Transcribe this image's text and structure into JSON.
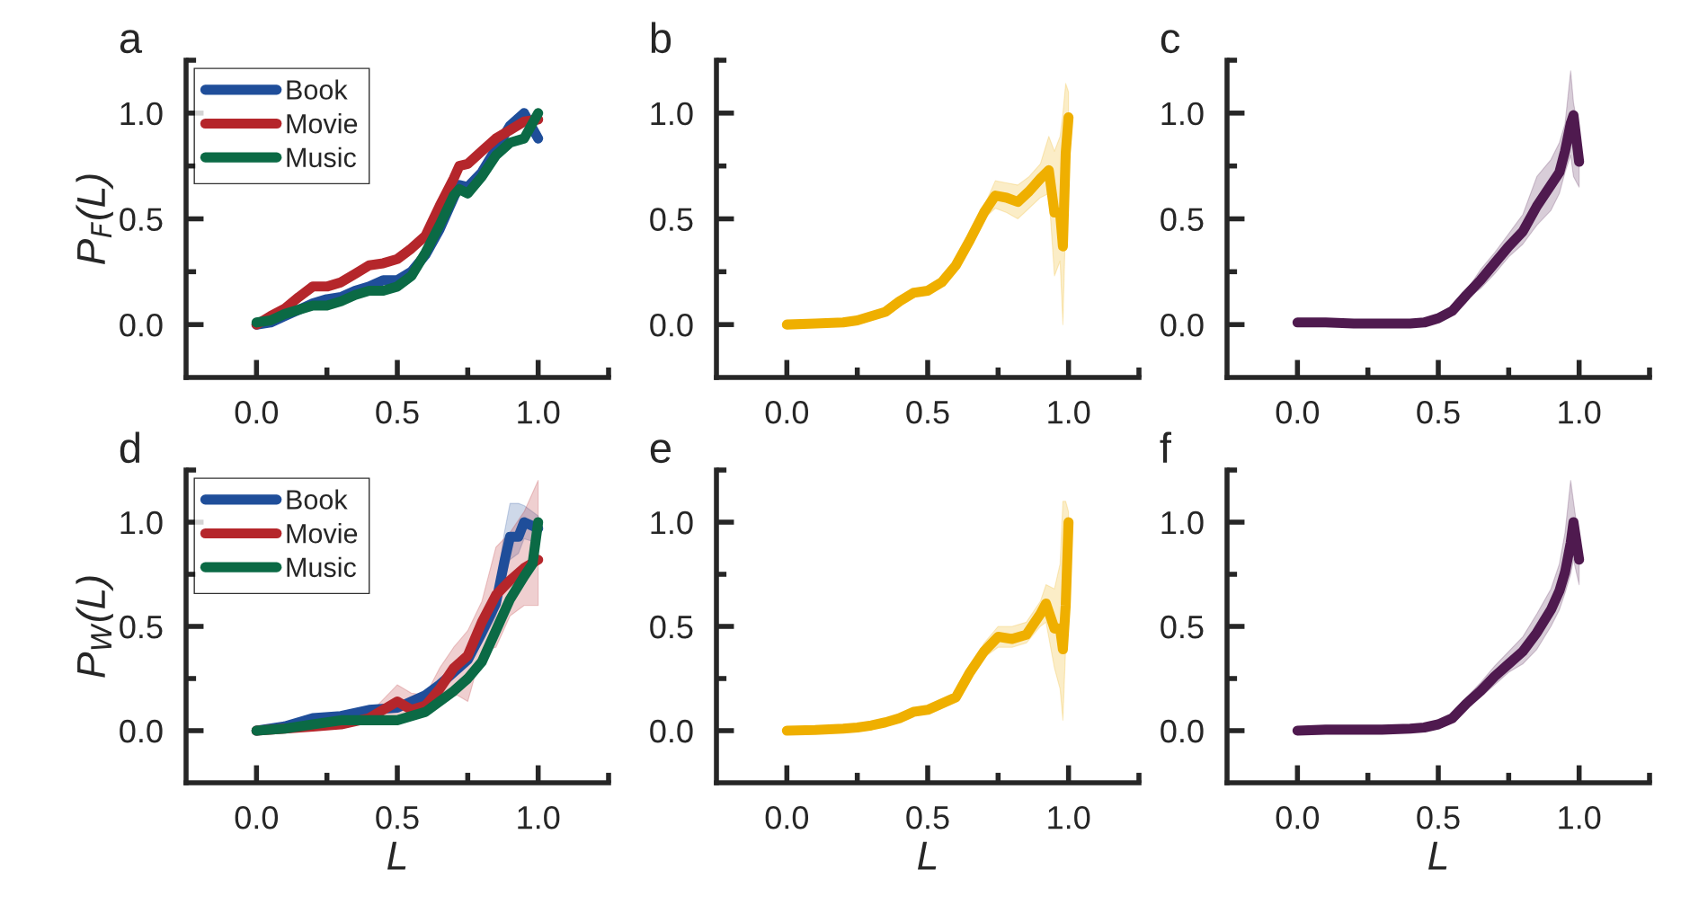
{
  "chart_data": [
    {
      "type": "line",
      "title": "a",
      "ylabel": "P$_{F}$(L)",
      "xlim": [
        -0.25,
        1.25
      ],
      "ylim": [
        -0.25,
        1.25
      ],
      "legend": "top left",
      "xticks": [
        {
          "value": 0,
          "label": "0.0"
        },
        {
          "value": 0.25,
          "label": null
        },
        {
          "value": 0.5,
          "label": "0.5"
        },
        {
          "value": 0.75,
          "label": null
        },
        {
          "value": 1.0,
          "label": "1.0"
        },
        {
          "value": 1.25,
          "label": null
        }
      ],
      "yticks": [
        {
          "value": 0,
          "label": "0.0"
        },
        {
          "value": 0.25,
          "label": null
        },
        {
          "value": 0.5,
          "label": "0.5"
        },
        {
          "value": 0.75,
          "label": null
        },
        {
          "value": 1.0,
          "label": "1.0"
        },
        {
          "value": 1.25,
          "label": null
        }
      ],
      "series": [
        {
          "name": "Book",
          "color": "#1f4e9a",
          "x": [
            0,
            0.05,
            0.1,
            0.15,
            0.2,
            0.25,
            0.3,
            0.35,
            0.4,
            0.45,
            0.5,
            0.55,
            0.6,
            0.65,
            0.7,
            0.72,
            0.75,
            0.8,
            0.85,
            0.9,
            0.95,
            1.0
          ],
          "values": [
            0,
            0.01,
            0.04,
            0.07,
            0.1,
            0.12,
            0.13,
            0.16,
            0.18,
            0.21,
            0.21,
            0.25,
            0.33,
            0.45,
            0.6,
            0.66,
            0.65,
            0.72,
            0.83,
            0.94,
            1.0,
            0.88
          ]
        },
        {
          "name": "Movie",
          "color": "#b5262b",
          "x": [
            0,
            0.05,
            0.1,
            0.15,
            0.2,
            0.25,
            0.3,
            0.35,
            0.4,
            0.45,
            0.5,
            0.55,
            0.6,
            0.65,
            0.7,
            0.72,
            0.75,
            0.8,
            0.85,
            0.9,
            0.95,
            1.0
          ],
          "values": [
            0,
            0.04,
            0.075,
            0.13,
            0.18,
            0.18,
            0.2,
            0.24,
            0.28,
            0.29,
            0.31,
            0.36,
            0.42,
            0.56,
            0.69,
            0.75,
            0.76,
            0.82,
            0.88,
            0.92,
            0.96,
            0.97
          ]
        },
        {
          "name": "Music",
          "color": "#0b6a45",
          "x": [
            0,
            0.05,
            0.1,
            0.15,
            0.2,
            0.25,
            0.3,
            0.35,
            0.4,
            0.45,
            0.5,
            0.55,
            0.6,
            0.65,
            0.7,
            0.72,
            0.75,
            0.8,
            0.85,
            0.9,
            0.95,
            1.0
          ],
          "values": [
            0.01,
            0.02,
            0.05,
            0.07,
            0.09,
            0.09,
            0.11,
            0.14,
            0.16,
            0.16,
            0.18,
            0.23,
            0.34,
            0.47,
            0.61,
            0.64,
            0.62,
            0.7,
            0.8,
            0.86,
            0.88,
            1.0
          ]
        }
      ]
    },
    {
      "type": "line",
      "title": "b",
      "xlim": [
        -0.25,
        1.25
      ],
      "ylim": [
        -0.25,
        1.25
      ],
      "xticks": [
        {
          "value": 0,
          "label": "0.0"
        },
        {
          "value": 0.25,
          "label": null
        },
        {
          "value": 0.5,
          "label": "0.5"
        },
        {
          "value": 0.75,
          "label": null
        },
        {
          "value": 1.0,
          "label": "1.0"
        },
        {
          "value": 1.25,
          "label": null
        }
      ],
      "yticks": [
        {
          "value": 0,
          "label": "0.0"
        },
        {
          "value": 0.25,
          "label": null
        },
        {
          "value": 0.5,
          "label": "0.5"
        },
        {
          "value": 0.75,
          "label": null
        },
        {
          "value": 1.0,
          "label": "1.0"
        },
        {
          "value": 1.25,
          "label": null
        }
      ],
      "series": [
        {
          "color": "#efaf00",
          "x": [
            0,
            0.1,
            0.2,
            0.25,
            0.3,
            0.35,
            0.4,
            0.45,
            0.5,
            0.55,
            0.6,
            0.65,
            0.7,
            0.74,
            0.78,
            0.82,
            0.86,
            0.9,
            0.93,
            0.95,
            0.97,
            0.98,
            0.99,
            1.0
          ],
          "values": [
            0,
            0.005,
            0.01,
            0.02,
            0.04,
            0.06,
            0.11,
            0.15,
            0.16,
            0.2,
            0.28,
            0.4,
            0.53,
            0.61,
            0.6,
            0.58,
            0.63,
            0.69,
            0.73,
            0.53,
            0.53,
            0.37,
            0.81,
            0.98
          ],
          "lower": [
            0,
            0.005,
            0.01,
            0.02,
            0.04,
            0.06,
            0.11,
            0.15,
            0.16,
            0.2,
            0.27,
            0.38,
            0.5,
            0.55,
            0.53,
            0.5,
            0.55,
            0.6,
            0.62,
            0.23,
            0.3,
            0.0,
            0.5,
            0.9
          ],
          "upper": [
            0,
            0.005,
            0.01,
            0.02,
            0.04,
            0.06,
            0.11,
            0.15,
            0.16,
            0.2,
            0.29,
            0.42,
            0.56,
            0.68,
            0.67,
            0.66,
            0.7,
            0.76,
            0.89,
            0.82,
            0.89,
            1.0,
            1.14,
            1.1
          ]
        }
      ]
    },
    {
      "type": "line",
      "title": "c",
      "xlim": [
        -0.25,
        1.25
      ],
      "ylim": [
        -0.25,
        1.25
      ],
      "xticks": [
        {
          "value": 0,
          "label": "0.0"
        },
        {
          "value": 0.25,
          "label": null
        },
        {
          "value": 0.5,
          "label": "0.5"
        },
        {
          "value": 0.75,
          "label": null
        },
        {
          "value": 1.0,
          "label": "1.0"
        },
        {
          "value": 1.25,
          "label": null
        }
      ],
      "yticks": [
        {
          "value": 0,
          "label": "0.0"
        },
        {
          "value": 0.25,
          "label": null
        },
        {
          "value": 0.5,
          "label": "0.5"
        },
        {
          "value": 0.75,
          "label": null
        },
        {
          "value": 1.0,
          "label": "1.0"
        },
        {
          "value": 1.25,
          "label": null
        }
      ],
      "series": [
        {
          "color": "#4f1a4f",
          "x": [
            0,
            0.1,
            0.2,
            0.3,
            0.4,
            0.45,
            0.5,
            0.55,
            0.6,
            0.65,
            0.7,
            0.75,
            0.8,
            0.85,
            0.9,
            0.93,
            0.95,
            0.97,
            0.98,
            1.0
          ],
          "values": [
            0.01,
            0.01,
            0.005,
            0.005,
            0.005,
            0.01,
            0.03,
            0.065,
            0.14,
            0.21,
            0.29,
            0.37,
            0.44,
            0.56,
            0.66,
            0.72,
            0.82,
            0.95,
            0.99,
            0.77
          ],
          "lower": [
            0.01,
            0.01,
            0.005,
            0.005,
            0.005,
            0.01,
            0.03,
            0.06,
            0.12,
            0.17,
            0.24,
            0.32,
            0.38,
            0.47,
            0.54,
            0.62,
            0.72,
            0.8,
            0.7,
            0.65
          ],
          "upper": [
            0.01,
            0.01,
            0.005,
            0.005,
            0.005,
            0.01,
            0.03,
            0.07,
            0.16,
            0.26,
            0.34,
            0.43,
            0.52,
            0.7,
            0.78,
            0.86,
            0.95,
            1.2,
            1.05,
            0.9
          ]
        }
      ]
    },
    {
      "type": "line",
      "title": "d",
      "ylabel": "P$_{W}$(L)",
      "xlabel": "L",
      "xlim": [
        -0.25,
        1.25
      ],
      "ylim": [
        -0.25,
        1.25
      ],
      "legend": "top left",
      "xticks": [
        {
          "value": 0,
          "label": "0.0"
        },
        {
          "value": 0.25,
          "label": null
        },
        {
          "value": 0.5,
          "label": "0.5"
        },
        {
          "value": 0.75,
          "label": null
        },
        {
          "value": 1.0,
          "label": "1.0"
        },
        {
          "value": 1.25,
          "label": null
        }
      ],
      "yticks": [
        {
          "value": 0,
          "label": "0.0"
        },
        {
          "value": 0.25,
          "label": null
        },
        {
          "value": 0.5,
          "label": "0.5"
        },
        {
          "value": 0.75,
          "label": null
        },
        {
          "value": 1.0,
          "label": "1.0"
        },
        {
          "value": 1.25,
          "label": null
        }
      ],
      "series": [
        {
          "name": "Book",
          "color": "#1f4e9a",
          "x": [
            0,
            0.1,
            0.2,
            0.3,
            0.4,
            0.5,
            0.6,
            0.65,
            0.7,
            0.75,
            0.8,
            0.85,
            0.88,
            0.9,
            0.93,
            0.95,
            1.0
          ],
          "values": [
            0,
            0.02,
            0.06,
            0.07,
            0.1,
            0.11,
            0.17,
            0.22,
            0.28,
            0.34,
            0.47,
            0.61,
            0.81,
            0.93,
            0.93,
            1.0,
            0.97
          ],
          "lower": [
            0,
            0.02,
            0.05,
            0.06,
            0.09,
            0.1,
            0.15,
            0.2,
            0.26,
            0.31,
            0.42,
            0.55,
            0.72,
            0.82,
            0.85,
            0.92,
            0.9
          ],
          "upper": [
            0,
            0.03,
            0.07,
            0.08,
            0.11,
            0.13,
            0.19,
            0.24,
            0.3,
            0.37,
            0.52,
            0.68,
            0.95,
            1.09,
            1.09,
            1.08,
            1.03
          ]
        },
        {
          "name": "Movie",
          "color": "#b5262b",
          "x": [
            0,
            0.1,
            0.2,
            0.3,
            0.4,
            0.5,
            0.55,
            0.6,
            0.65,
            0.7,
            0.75,
            0.8,
            0.85,
            0.9,
            0.95,
            1.0
          ],
          "values": [
            0,
            0.01,
            0.02,
            0.03,
            0.06,
            0.14,
            0.1,
            0.12,
            0.2,
            0.3,
            0.36,
            0.52,
            0.65,
            0.72,
            0.78,
            0.82
          ],
          "lower": [
            0,
            0,
            0.01,
            0.02,
            0.04,
            0.07,
            0.05,
            0.08,
            0.12,
            0.18,
            0.14,
            0.38,
            0.4,
            0.55,
            0.6,
            0.6
          ],
          "upper": [
            0,
            0.02,
            0.04,
            0.05,
            0.08,
            0.22,
            0.18,
            0.17,
            0.3,
            0.4,
            0.48,
            0.62,
            0.88,
            0.95,
            1.05,
            1.2
          ]
        },
        {
          "name": "Music",
          "color": "#0b6a45",
          "x": [
            0,
            0.1,
            0.2,
            0.3,
            0.4,
            0.5,
            0.6,
            0.7,
            0.75,
            0.8,
            0.85,
            0.9,
            0.95,
            0.98,
            1.0
          ],
          "values": [
            0,
            0.01,
            0.03,
            0.05,
            0.05,
            0.05,
            0.09,
            0.19,
            0.25,
            0.33,
            0.48,
            0.63,
            0.74,
            0.8,
            1.0
          ]
        }
      ]
    },
    {
      "type": "line",
      "title": "e",
      "xlabel": "L",
      "xlim": [
        -0.25,
        1.25
      ],
      "ylim": [
        -0.25,
        1.25
      ],
      "xticks": [
        {
          "value": 0,
          "label": "0.0"
        },
        {
          "value": 0.25,
          "label": null
        },
        {
          "value": 0.5,
          "label": "0.5"
        },
        {
          "value": 0.75,
          "label": null
        },
        {
          "value": 1.0,
          "label": "1.0"
        },
        {
          "value": 1.25,
          "label": null
        }
      ],
      "yticks": [
        {
          "value": 0,
          "label": "0.0"
        },
        {
          "value": 0.25,
          "label": null
        },
        {
          "value": 0.5,
          "label": "0.5"
        },
        {
          "value": 0.75,
          "label": null
        },
        {
          "value": 1.0,
          "label": "1.0"
        },
        {
          "value": 1.25,
          "label": null
        }
      ],
      "series": [
        {
          "color": "#efaf00",
          "x": [
            0,
            0.1,
            0.2,
            0.25,
            0.3,
            0.35,
            0.4,
            0.45,
            0.5,
            0.55,
            0.6,
            0.65,
            0.7,
            0.75,
            0.8,
            0.85,
            0.9,
            0.92,
            0.95,
            0.97,
            0.98,
            0.99,
            1.0
          ],
          "values": [
            0,
            0.003,
            0.01,
            0.015,
            0.025,
            0.04,
            0.06,
            0.09,
            0.1,
            0.13,
            0.16,
            0.28,
            0.38,
            0.45,
            0.44,
            0.46,
            0.56,
            0.61,
            0.49,
            0.49,
            0.39,
            0.6,
            1.0
          ],
          "lower": [
            0,
            0.003,
            0.01,
            0.015,
            0.025,
            0.04,
            0.06,
            0.09,
            0.1,
            0.13,
            0.15,
            0.26,
            0.35,
            0.4,
            0.4,
            0.42,
            0.5,
            0.52,
            0.3,
            0.2,
            0.05,
            0.4,
            0.85
          ],
          "upper": [
            0,
            0.003,
            0.01,
            0.015,
            0.025,
            0.04,
            0.06,
            0.09,
            0.1,
            0.13,
            0.17,
            0.3,
            0.42,
            0.5,
            0.5,
            0.52,
            0.62,
            0.7,
            0.68,
            0.8,
            1.1,
            1.1,
            1.05
          ]
        }
      ]
    },
    {
      "type": "line",
      "title": "f",
      "xlabel": "L",
      "xlim": [
        -0.25,
        1.25
      ],
      "ylim": [
        -0.25,
        1.25
      ],
      "xticks": [
        {
          "value": 0,
          "label": "0.0"
        },
        {
          "value": 0.25,
          "label": null
        },
        {
          "value": 0.5,
          "label": "0.5"
        },
        {
          "value": 0.75,
          "label": null
        },
        {
          "value": 1.0,
          "label": "1.0"
        },
        {
          "value": 1.25,
          "label": null
        }
      ],
      "yticks": [
        {
          "value": 0,
          "label": "0.0"
        },
        {
          "value": 0.25,
          "label": null
        },
        {
          "value": 0.5,
          "label": "0.5"
        },
        {
          "value": 0.75,
          "label": null
        },
        {
          "value": 1.0,
          "label": "1.0"
        },
        {
          "value": 1.25,
          "label": null
        }
      ],
      "series": [
        {
          "color": "#4f1a4f",
          "x": [
            0,
            0.1,
            0.2,
            0.3,
            0.4,
            0.45,
            0.5,
            0.55,
            0.6,
            0.65,
            0.7,
            0.75,
            0.8,
            0.85,
            0.9,
            0.93,
            0.95,
            0.97,
            0.98,
            1.0
          ],
          "values": [
            0.0,
            0.005,
            0.005,
            0.005,
            0.01,
            0.015,
            0.03,
            0.06,
            0.13,
            0.19,
            0.26,
            0.32,
            0.38,
            0.47,
            0.58,
            0.67,
            0.76,
            0.9,
            1.0,
            0.82
          ],
          "lower": [
            0.0,
            0.005,
            0.005,
            0.005,
            0.01,
            0.015,
            0.03,
            0.05,
            0.11,
            0.16,
            0.22,
            0.28,
            0.32,
            0.39,
            0.5,
            0.58,
            0.66,
            0.75,
            0.82,
            0.7
          ],
          "upper": [
            0.0,
            0.005,
            0.005,
            0.005,
            0.01,
            0.015,
            0.03,
            0.07,
            0.16,
            0.23,
            0.31,
            0.38,
            0.45,
            0.56,
            0.68,
            0.8,
            0.95,
            1.2,
            1.1,
            0.9
          ]
        }
      ]
    }
  ]
}
